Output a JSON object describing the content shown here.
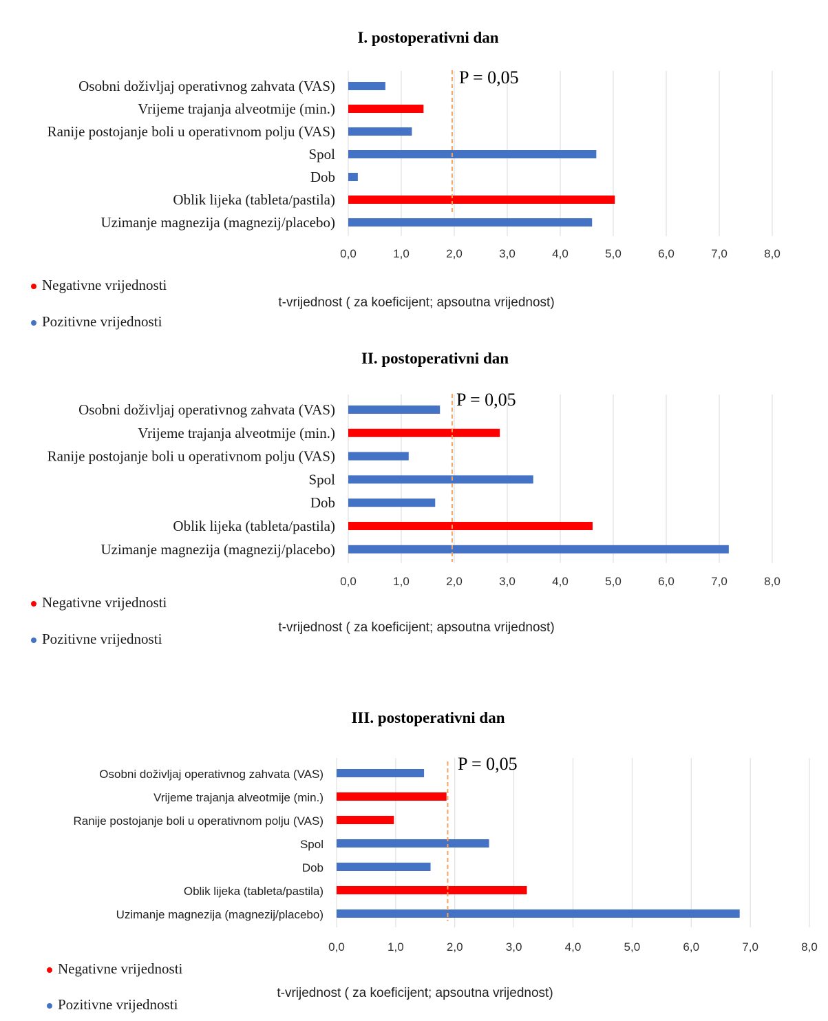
{
  "colors": {
    "negative": "#ff0000",
    "positive": "#4472c4"
  },
  "chart_data": [
    {
      "type": "bar",
      "orientation": "horizontal",
      "title": "I. postoperativni dan",
      "xlabel": "t-vrijednost ( za koeficijent; apsoutna vrijednost)",
      "xlim": [
        0,
        8
      ],
      "xticks": [
        "0,0",
        "1,0",
        "2,0",
        "3,0",
        "4,0",
        "5,0",
        "6,0",
        "7,0",
        "8,0"
      ],
      "categories": [
        "Osobni doživljaj operativnog zahvata (VAS)",
        "Vrijeme trajanja alveotmije (min.)",
        "Ranije postojanje boli u operativnom polju (VAS)",
        "Spol",
        "Dob",
        "Oblik lijeka (tableta/pastila)",
        "Uzimanje magnezija (magnezij/placebo)"
      ],
      "values": [
        0.7,
        1.42,
        1.2,
        4.68,
        0.18,
        5.03,
        4.6
      ],
      "signs": [
        "positive",
        "negative",
        "positive",
        "positive",
        "positive",
        "negative",
        "positive"
      ],
      "reference_line": {
        "value": 1.96,
        "label": "P = 0,05"
      },
      "legend": [
        "Negativne vrijednosti",
        "Pozitivne vrijednosti"
      ]
    },
    {
      "type": "bar",
      "orientation": "horizontal",
      "title": "II. postoperativni dan",
      "xlabel": "t-vrijednost ( za koeficijent; apsoutna vrijednost)",
      "xlim": [
        0,
        8
      ],
      "xticks": [
        "0,0",
        "1,0",
        "2,0",
        "3,0",
        "4,0",
        "5,0",
        "6,0",
        "7,0",
        "8,0"
      ],
      "categories": [
        "Osobni doživljaj operativnog zahvata (VAS)",
        "Vrijeme trajanja alveotmije (min.)",
        "Ranije postojanje boli u operativnom polju (VAS)",
        "Spol",
        "Dob",
        "Oblik lijeka (tableta/pastila)",
        "Uzimanje magnezija (magnezij/placebo)"
      ],
      "values": [
        1.73,
        2.86,
        1.14,
        3.49,
        1.64,
        4.61,
        7.18
      ],
      "signs": [
        "positive",
        "negative",
        "positive",
        "positive",
        "positive",
        "negative",
        "positive"
      ],
      "reference_line": {
        "value": 1.96,
        "label": "P = 0,05"
      },
      "legend": [
        "Negativne vrijednosti",
        "Pozitivne vrijednosti"
      ]
    },
    {
      "type": "bar",
      "orientation": "horizontal",
      "title": "III. postoperativni dan",
      "xlabel": "t-vrijednost ( za koeficijent; apsoutna vrijednost)",
      "xlim": [
        0,
        8
      ],
      "xticks": [
        "0,0",
        "1,0",
        "2,0",
        "3,0",
        "4,0",
        "5,0",
        "6,0",
        "7,0",
        "8,0"
      ],
      "categories": [
        "Osobni doživljaj operativnog zahvata (VAS)",
        "Vrijeme trajanja alveotmije (min.)",
        "Ranije postojanje boli u operativnom polju (VAS)",
        "Spol",
        "Dob",
        "Oblik lijeka (tableta/pastila)",
        "Uzimanje magnezija (magnezij/placebo)"
      ],
      "values": [
        1.48,
        1.86,
        0.97,
        2.58,
        1.59,
        3.22,
        6.82
      ],
      "signs": [
        "positive",
        "negative",
        "negative",
        "positive",
        "positive",
        "negative",
        "positive"
      ],
      "reference_line": {
        "value": 1.88,
        "label": "P = 0,05"
      },
      "legend": [
        "Negativne vrijednosti",
        "Pozitivne vrijednosti"
      ]
    }
  ]
}
